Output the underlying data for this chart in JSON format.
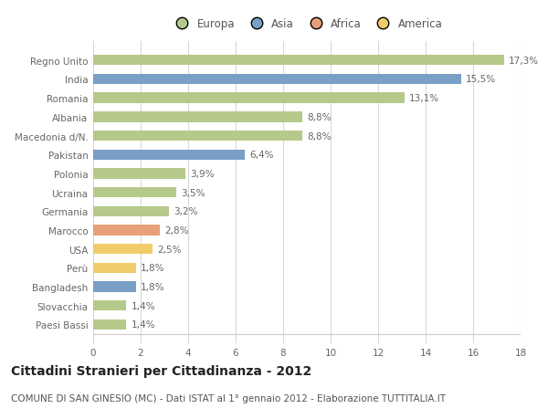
{
  "categories": [
    "Paesi Bassi",
    "Slovacchia",
    "Bangladesh",
    "Perù",
    "USA",
    "Marocco",
    "Germania",
    "Ucraina",
    "Polonia",
    "Pakistan",
    "Macedonia d/N.",
    "Albania",
    "Romania",
    "India",
    "Regno Unito"
  ],
  "values": [
    1.4,
    1.4,
    1.8,
    1.8,
    2.5,
    2.8,
    3.2,
    3.5,
    3.9,
    6.4,
    8.8,
    8.8,
    13.1,
    15.5,
    17.3
  ],
  "continents": [
    "Europa",
    "Europa",
    "Asia",
    "America",
    "America",
    "Africa",
    "Europa",
    "Europa",
    "Europa",
    "Asia",
    "Europa",
    "Europa",
    "Europa",
    "Asia",
    "Europa"
  ],
  "labels": [
    "1,4%",
    "1,4%",
    "1,8%",
    "1,8%",
    "2,5%",
    "2,8%",
    "3,2%",
    "3,5%",
    "3,9%",
    "6,4%",
    "8,8%",
    "8,8%",
    "13,1%",
    "15,5%",
    "17,3%"
  ],
  "colors": {
    "Europa": "#b5c98a",
    "Asia": "#7a9fc7",
    "Africa": "#e8a07a",
    "America": "#f0cc6a"
  },
  "legend_order": [
    "Europa",
    "Asia",
    "Africa",
    "America"
  ],
  "legend_colors": [
    "#b5c98a",
    "#7a9fc7",
    "#e8a07a",
    "#f0cc6a"
  ],
  "background_color": "#ffffff",
  "grid_color": "#d8d8d8",
  "xlim": [
    0,
    18
  ],
  "xticks": [
    0,
    2,
    4,
    6,
    8,
    10,
    12,
    14,
    16,
    18
  ],
  "bar_height": 0.55,
  "title": "Cittadini Stranieri per Cittadinanza - 2012",
  "subtitle": "COMUNE DI SAN GINESIO (MC) - Dati ISTAT al 1° gennaio 2012 - Elaborazione TUTTITALIA.IT",
  "title_fontsize": 10,
  "subtitle_fontsize": 7.5,
  "label_fontsize": 7.5,
  "tick_fontsize": 7.5,
  "legend_fontsize": 8.5
}
